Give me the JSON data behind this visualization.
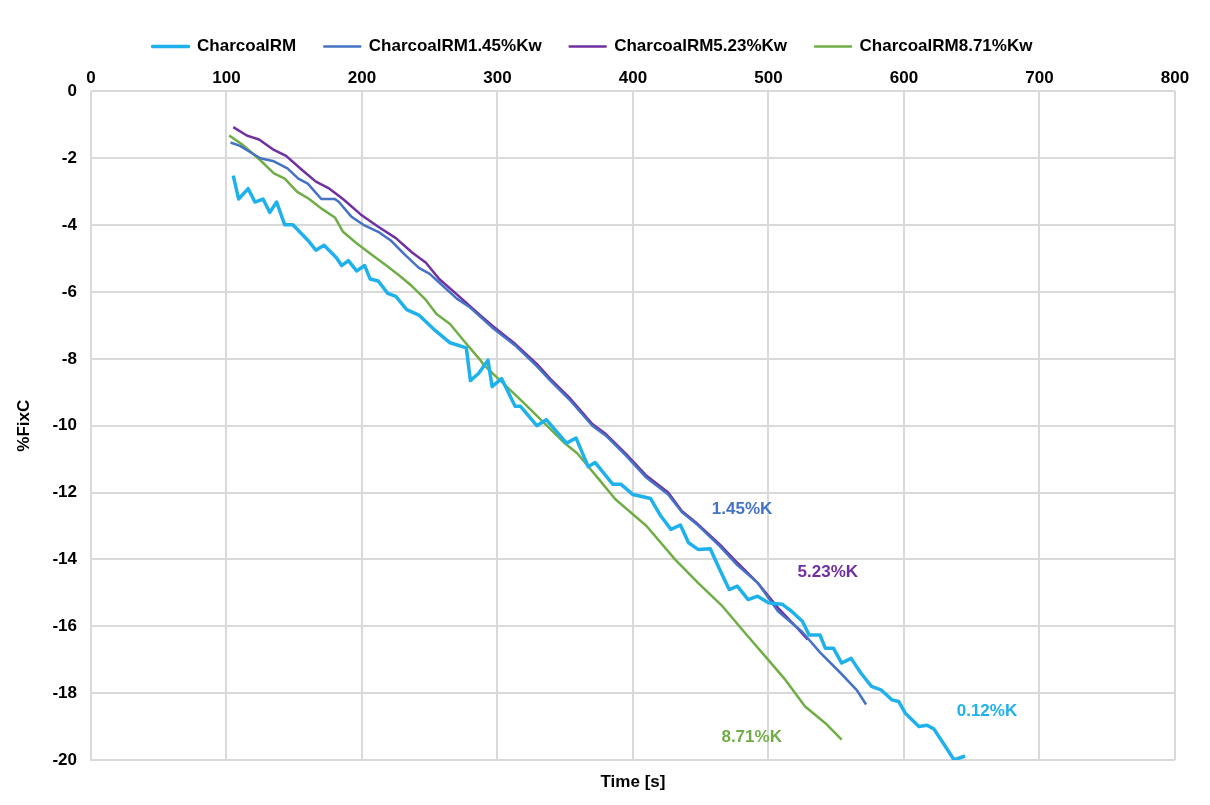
{
  "chart_data": {
    "type": "line",
    "xlabel": "Time [s]",
    "ylabel": "%FixC",
    "xlim": [
      0,
      800
    ],
    "xticks": [
      0,
      100,
      200,
      300,
      400,
      500,
      600,
      700,
      800
    ],
    "ylim": [
      -20,
      0
    ],
    "yticks": [
      0,
      -2,
      -4,
      -6,
      -8,
      -10,
      -12,
      -14,
      -16,
      -18,
      -20
    ],
    "grid": true,
    "legend": "top",
    "marker": "none",
    "line_style": "solid",
    "series": [
      {
        "name": "CharcoalRM",
        "color": "#1fb1ec",
        "x": [
          105,
          109,
          116,
          121,
          127,
          132,
          137,
          143,
          149,
          160,
          166,
          172,
          181,
          185,
          190,
          196,
          202,
          206,
          212,
          219,
          225,
          233,
          242,
          254,
          265,
          277,
          280,
          286,
          293,
          296,
          303,
          313,
          317,
          329,
          336,
          351,
          358,
          367,
          372,
          385,
          391,
          400,
          413,
          420,
          428,
          435,
          441,
          448,
          457,
          464,
          471,
          477,
          485,
          492,
          500,
          510,
          517,
          525,
          530,
          538,
          542,
          548,
          554,
          561,
          568,
          576,
          583,
          591,
          596,
          601,
          611,
          617,
          622,
          629,
          637,
          645
        ],
        "values": [
          -2.52,
          -3.22,
          -2.91,
          -3.31,
          -3.22,
          -3.62,
          -3.31,
          -3.99,
          -3.99,
          -4.45,
          -4.75,
          -4.6,
          -4.97,
          -5.21,
          -5.06,
          -5.37,
          -5.21,
          -5.61,
          -5.67,
          -6.04,
          -6.13,
          -6.53,
          -6.69,
          -7.15,
          -7.52,
          -7.67,
          -8.65,
          -8.44,
          -8.04,
          -8.83,
          -8.59,
          -9.42,
          -9.42,
          -10.0,
          -9.82,
          -10.52,
          -10.37,
          -11.23,
          -11.1,
          -11.75,
          -11.75,
          -12.06,
          -12.18,
          -12.67,
          -13.1,
          -12.97,
          -13.5,
          -13.7,
          -13.68,
          -14.3,
          -14.9,
          -14.8,
          -15.2,
          -15.1,
          -15.3,
          -15.34,
          -15.55,
          -15.85,
          -16.26,
          -16.26,
          -16.66,
          -16.66,
          -17.1,
          -16.96,
          -17.39,
          -17.8,
          -17.9,
          -18.2,
          -18.25,
          -18.6,
          -19.0,
          -18.96,
          -19.07,
          -19.5,
          -20.0,
          -19.88
        ]
      },
      {
        "name": "CharcoalRM1.45%Kw",
        "color": "#4472c4",
        "x": [
          103,
          110,
          125,
          135,
          145,
          153,
          160,
          170,
          180,
          183,
          192,
          201,
          212,
          221,
          232,
          242,
          250,
          260,
          270,
          279,
          296,
          313,
          329,
          339,
          354,
          370,
          380,
          395,
          410,
          426,
          436,
          448,
          464,
          477,
          492,
          507,
          525,
          538,
          553,
          565,
          572
        ],
        "values": [
          -1.53,
          -1.63,
          -2.0,
          -2.09,
          -2.3,
          -2.61,
          -2.76,
          -3.22,
          -3.22,
          -3.31,
          -3.74,
          -3.99,
          -4.2,
          -4.45,
          -4.9,
          -5.28,
          -5.46,
          -5.83,
          -6.2,
          -6.44,
          -7.06,
          -7.6,
          -8.22,
          -8.65,
          -9.26,
          -10.0,
          -10.3,
          -10.9,
          -11.56,
          -12.06,
          -12.58,
          -12.98,
          -13.6,
          -14.17,
          -14.7,
          -15.55,
          -16.17,
          -16.78,
          -17.39,
          -17.9,
          -18.34
        ]
      },
      {
        "name": "CharcoalRM5.23%Kw",
        "color": "#7030a0",
        "x": [
          105,
          115,
          124,
          135,
          144,
          156,
          166,
          176,
          186,
          199,
          212,
          225,
          237,
          247,
          257,
          270,
          287,
          296,
          313,
          329,
          339,
          354,
          370,
          380,
          395,
          410,
          426,
          436,
          448,
          464,
          477,
          492,
          507,
          520,
          529
        ],
        "values": [
          -1.07,
          -1.32,
          -1.44,
          -1.75,
          -1.93,
          -2.36,
          -2.7,
          -2.91,
          -3.22,
          -3.68,
          -4.05,
          -4.39,
          -4.82,
          -5.12,
          -5.61,
          -6.07,
          -6.69,
          -7.0,
          -7.55,
          -8.15,
          -8.6,
          -9.2,
          -9.95,
          -10.25,
          -10.85,
          -11.5,
          -12.0,
          -12.55,
          -12.95,
          -13.55,
          -14.1,
          -14.7,
          -15.45,
          -16.0,
          -16.4
        ]
      },
      {
        "name": "CharcoalRM8.71%Kw",
        "color": "#70ad47",
        "x": [
          102,
          112,
          125,
          135,
          143,
          152,
          161,
          171,
          180,
          186,
          196,
          206,
          218,
          228,
          237,
          247,
          255,
          265,
          275,
          288,
          290,
          306,
          319,
          334,
          349,
          359,
          374,
          387,
          410,
          431,
          448,
          466,
          484,
          497,
          512,
          527,
          542,
          554
        ],
        "values": [
          -1.32,
          -1.6,
          -2.06,
          -2.45,
          -2.61,
          -3.0,
          -3.22,
          -3.53,
          -3.77,
          -4.2,
          -4.54,
          -4.85,
          -5.21,
          -5.52,
          -5.83,
          -6.23,
          -6.66,
          -6.96,
          -7.45,
          -8.07,
          -8.19,
          -8.8,
          -9.3,
          -9.9,
          -10.5,
          -10.83,
          -11.56,
          -12.2,
          -13.0,
          -14.0,
          -14.7,
          -15.4,
          -16.26,
          -16.87,
          -17.58,
          -18.4,
          -18.9,
          -19.39
        ]
      }
    ],
    "annotations": [
      "0.12%K",
      "1.45%K",
      "5.23%K",
      "8.71%K"
    ]
  }
}
